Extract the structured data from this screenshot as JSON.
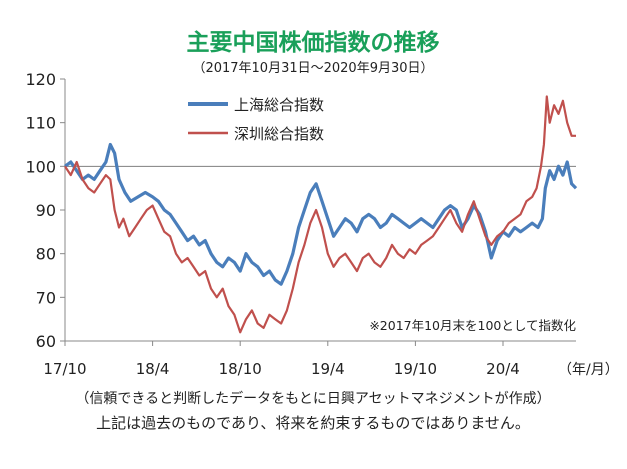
{
  "colors": {
    "title": "#1aa05a",
    "shanghai": "#4a7ebb",
    "shenzhen": "#c0504d",
    "axis": "#888888",
    "baseline": "#7f7f7f",
    "text": "#222222"
  },
  "chart_data": {
    "type": "line",
    "title": "主要中国株価指数の推移",
    "subtitle": "（2017年10月31日～2020年9月30日）",
    "xlabel": "",
    "ylabel": "",
    "x_unit_label": "（年/月）",
    "ylim": [
      60,
      120
    ],
    "yticks": [
      "60",
      "70",
      "80",
      "90",
      "100",
      "110",
      "120"
    ],
    "xticks": [
      {
        "label": "17/10",
        "month": 0
      },
      {
        "label": "18/4",
        "month": 6
      },
      {
        "label": "18/10",
        "month": 12
      },
      {
        "label": "19/4",
        "month": 18
      },
      {
        "label": "19/10",
        "month": 24
      },
      {
        "label": "20/4",
        "month": 30
      }
    ],
    "x_domain_months": [
      0,
      35
    ],
    "reference_line": 100,
    "grid": false,
    "legend_placement": "top-center",
    "annotation": "※2017年10月末を100として指数化",
    "series": [
      {
        "name": "上海総合指数",
        "color": "#4a7ebb",
        "points": [
          [
            0.0,
            100
          ],
          [
            0.4,
            101
          ],
          [
            0.8,
            99
          ],
          [
            1.2,
            97
          ],
          [
            1.6,
            98
          ],
          [
            2.0,
            97
          ],
          [
            2.4,
            99
          ],
          [
            2.8,
            101
          ],
          [
            3.1,
            105
          ],
          [
            3.4,
            103
          ],
          [
            3.7,
            97
          ],
          [
            4.1,
            94
          ],
          [
            4.5,
            92
          ],
          [
            5.0,
            93
          ],
          [
            5.5,
            94
          ],
          [
            6.0,
            93
          ],
          [
            6.4,
            92
          ],
          [
            6.8,
            90
          ],
          [
            7.2,
            89
          ],
          [
            7.6,
            87
          ],
          [
            8.0,
            85
          ],
          [
            8.4,
            83
          ],
          [
            8.8,
            84
          ],
          [
            9.2,
            82
          ],
          [
            9.6,
            83
          ],
          [
            10.0,
            80
          ],
          [
            10.4,
            78
          ],
          [
            10.8,
            77
          ],
          [
            11.2,
            79
          ],
          [
            11.6,
            78
          ],
          [
            12.0,
            76
          ],
          [
            12.4,
            80
          ],
          [
            12.8,
            78
          ],
          [
            13.2,
            77
          ],
          [
            13.6,
            75
          ],
          [
            14.0,
            76
          ],
          [
            14.4,
            74
          ],
          [
            14.8,
            73
          ],
          [
            15.2,
            76
          ],
          [
            15.6,
            80
          ],
          [
            16.0,
            86
          ],
          [
            16.4,
            90
          ],
          [
            16.8,
            94
          ],
          [
            17.2,
            96
          ],
          [
            17.6,
            92
          ],
          [
            18.0,
            88
          ],
          [
            18.4,
            84
          ],
          [
            18.8,
            86
          ],
          [
            19.2,
            88
          ],
          [
            19.6,
            87
          ],
          [
            20.0,
            85
          ],
          [
            20.4,
            88
          ],
          [
            20.8,
            89
          ],
          [
            21.2,
            88
          ],
          [
            21.6,
            86
          ],
          [
            22.0,
            87
          ],
          [
            22.4,
            89
          ],
          [
            22.8,
            88
          ],
          [
            23.2,
            87
          ],
          [
            23.6,
            86
          ],
          [
            24.0,
            87
          ],
          [
            24.4,
            88
          ],
          [
            24.8,
            87
          ],
          [
            25.2,
            86
          ],
          [
            25.6,
            88
          ],
          [
            26.0,
            90
          ],
          [
            26.4,
            91
          ],
          [
            26.8,
            90
          ],
          [
            27.2,
            86
          ],
          [
            27.6,
            88
          ],
          [
            28.0,
            91
          ],
          [
            28.4,
            89
          ],
          [
            28.8,
            85
          ],
          [
            29.2,
            79
          ],
          [
            29.6,
            83
          ],
          [
            30.0,
            85
          ],
          [
            30.4,
            84
          ],
          [
            30.8,
            86
          ],
          [
            31.2,
            85
          ],
          [
            31.6,
            86
          ],
          [
            32.0,
            87
          ],
          [
            32.4,
            86
          ],
          [
            32.7,
            88
          ],
          [
            32.9,
            95
          ],
          [
            33.2,
            99
          ],
          [
            33.5,
            97
          ],
          [
            33.8,
            100
          ],
          [
            34.1,
            98
          ],
          [
            34.4,
            101
          ],
          [
            34.7,
            96
          ],
          [
            35.0,
            95
          ]
        ]
      },
      {
        "name": "深圳総合指数",
        "color": "#c0504d",
        "points": [
          [
            0.0,
            100
          ],
          [
            0.4,
            98
          ],
          [
            0.8,
            101
          ],
          [
            1.2,
            97
          ],
          [
            1.6,
            95
          ],
          [
            2.0,
            94
          ],
          [
            2.4,
            96
          ],
          [
            2.8,
            98
          ],
          [
            3.1,
            97
          ],
          [
            3.4,
            90
          ],
          [
            3.7,
            86
          ],
          [
            4.0,
            88
          ],
          [
            4.4,
            84
          ],
          [
            4.8,
            86
          ],
          [
            5.2,
            88
          ],
          [
            5.6,
            90
          ],
          [
            6.0,
            91
          ],
          [
            6.4,
            88
          ],
          [
            6.8,
            85
          ],
          [
            7.2,
            84
          ],
          [
            7.6,
            80
          ],
          [
            8.0,
            78
          ],
          [
            8.4,
            79
          ],
          [
            8.8,
            77
          ],
          [
            9.2,
            75
          ],
          [
            9.6,
            76
          ],
          [
            10.0,
            72
          ],
          [
            10.4,
            70
          ],
          [
            10.8,
            72
          ],
          [
            11.2,
            68
          ],
          [
            11.6,
            66
          ],
          [
            12.0,
            62
          ],
          [
            12.4,
            65
          ],
          [
            12.8,
            67
          ],
          [
            13.2,
            64
          ],
          [
            13.6,
            63
          ],
          [
            14.0,
            66
          ],
          [
            14.4,
            65
          ],
          [
            14.8,
            64
          ],
          [
            15.2,
            67
          ],
          [
            15.6,
            72
          ],
          [
            16.0,
            78
          ],
          [
            16.4,
            82
          ],
          [
            16.8,
            87
          ],
          [
            17.2,
            90
          ],
          [
            17.6,
            86
          ],
          [
            18.0,
            80
          ],
          [
            18.4,
            77
          ],
          [
            18.8,
            79
          ],
          [
            19.2,
            80
          ],
          [
            19.6,
            78
          ],
          [
            20.0,
            76
          ],
          [
            20.4,
            79
          ],
          [
            20.8,
            80
          ],
          [
            21.2,
            78
          ],
          [
            21.6,
            77
          ],
          [
            22.0,
            79
          ],
          [
            22.4,
            82
          ],
          [
            22.8,
            80
          ],
          [
            23.2,
            79
          ],
          [
            23.6,
            81
          ],
          [
            24.0,
            80
          ],
          [
            24.4,
            82
          ],
          [
            24.8,
            83
          ],
          [
            25.2,
            84
          ],
          [
            25.6,
            86
          ],
          [
            26.0,
            88
          ],
          [
            26.4,
            90
          ],
          [
            26.8,
            87
          ],
          [
            27.2,
            85
          ],
          [
            27.6,
            89
          ],
          [
            28.0,
            92
          ],
          [
            28.4,
            88
          ],
          [
            28.8,
            84
          ],
          [
            29.2,
            82
          ],
          [
            29.6,
            84
          ],
          [
            30.0,
            85
          ],
          [
            30.4,
            87
          ],
          [
            30.8,
            88
          ],
          [
            31.2,
            89
          ],
          [
            31.6,
            92
          ],
          [
            32.0,
            93
          ],
          [
            32.3,
            95
          ],
          [
            32.6,
            100
          ],
          [
            32.8,
            105
          ],
          [
            33.0,
            116
          ],
          [
            33.2,
            110
          ],
          [
            33.5,
            114
          ],
          [
            33.8,
            112
          ],
          [
            34.1,
            115
          ],
          [
            34.4,
            110
          ],
          [
            34.7,
            107
          ],
          [
            35.0,
            107
          ]
        ]
      }
    ]
  },
  "footer": {
    "line1": "（信頼できると判断したデータをもとに日興アセットマネジメントが作成）",
    "line2": "上記は過去のものであり、将来を約束するものではありません。"
  }
}
